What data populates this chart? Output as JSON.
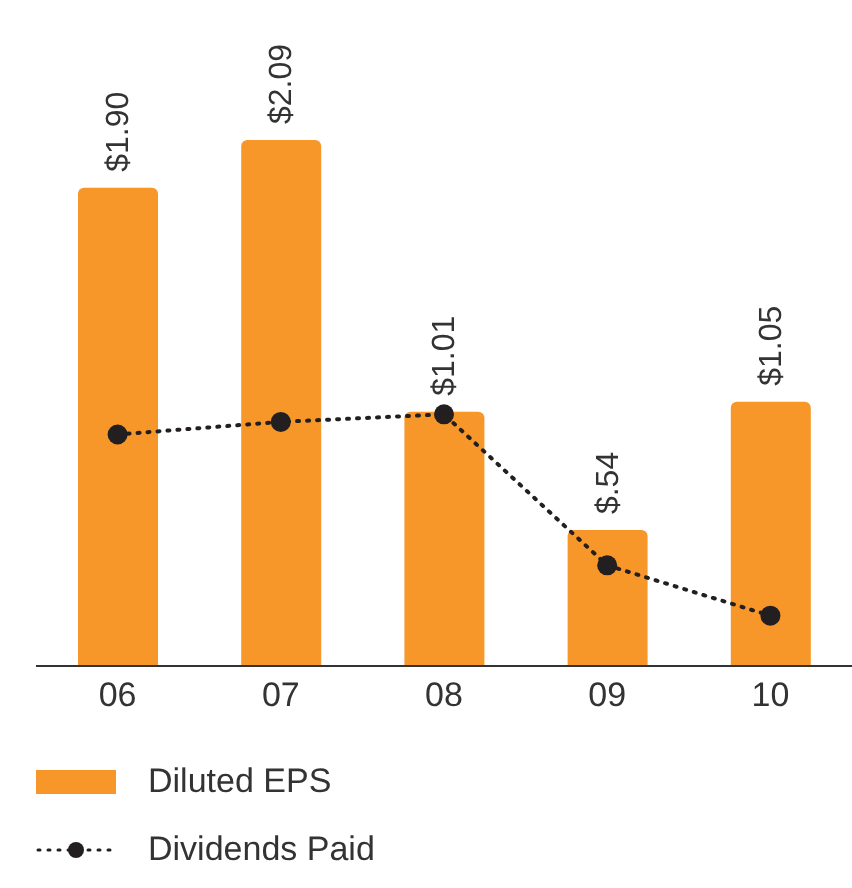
{
  "chart_data": {
    "type": "bar",
    "categories": [
      "06",
      "07",
      "08",
      "09",
      "10"
    ],
    "series": [
      {
        "name": "Diluted EPS",
        "color": "#f7972a",
        "values": [
          1.9,
          2.09,
          1.01,
          0.54,
          1.05
        ],
        "value_labels": [
          "$1.90",
          "$2.09",
          "$1.01",
          "$.54",
          "$1.05"
        ]
      },
      {
        "name": "Dividends Paid",
        "type": "line",
        "color": "#231f20",
        "values": [
          0.92,
          0.97,
          1.0,
          0.4,
          0.2
        ],
        "marker": "circle",
        "line_style": "dotted"
      }
    ],
    "legend": "bottom",
    "grid": false
  }
}
